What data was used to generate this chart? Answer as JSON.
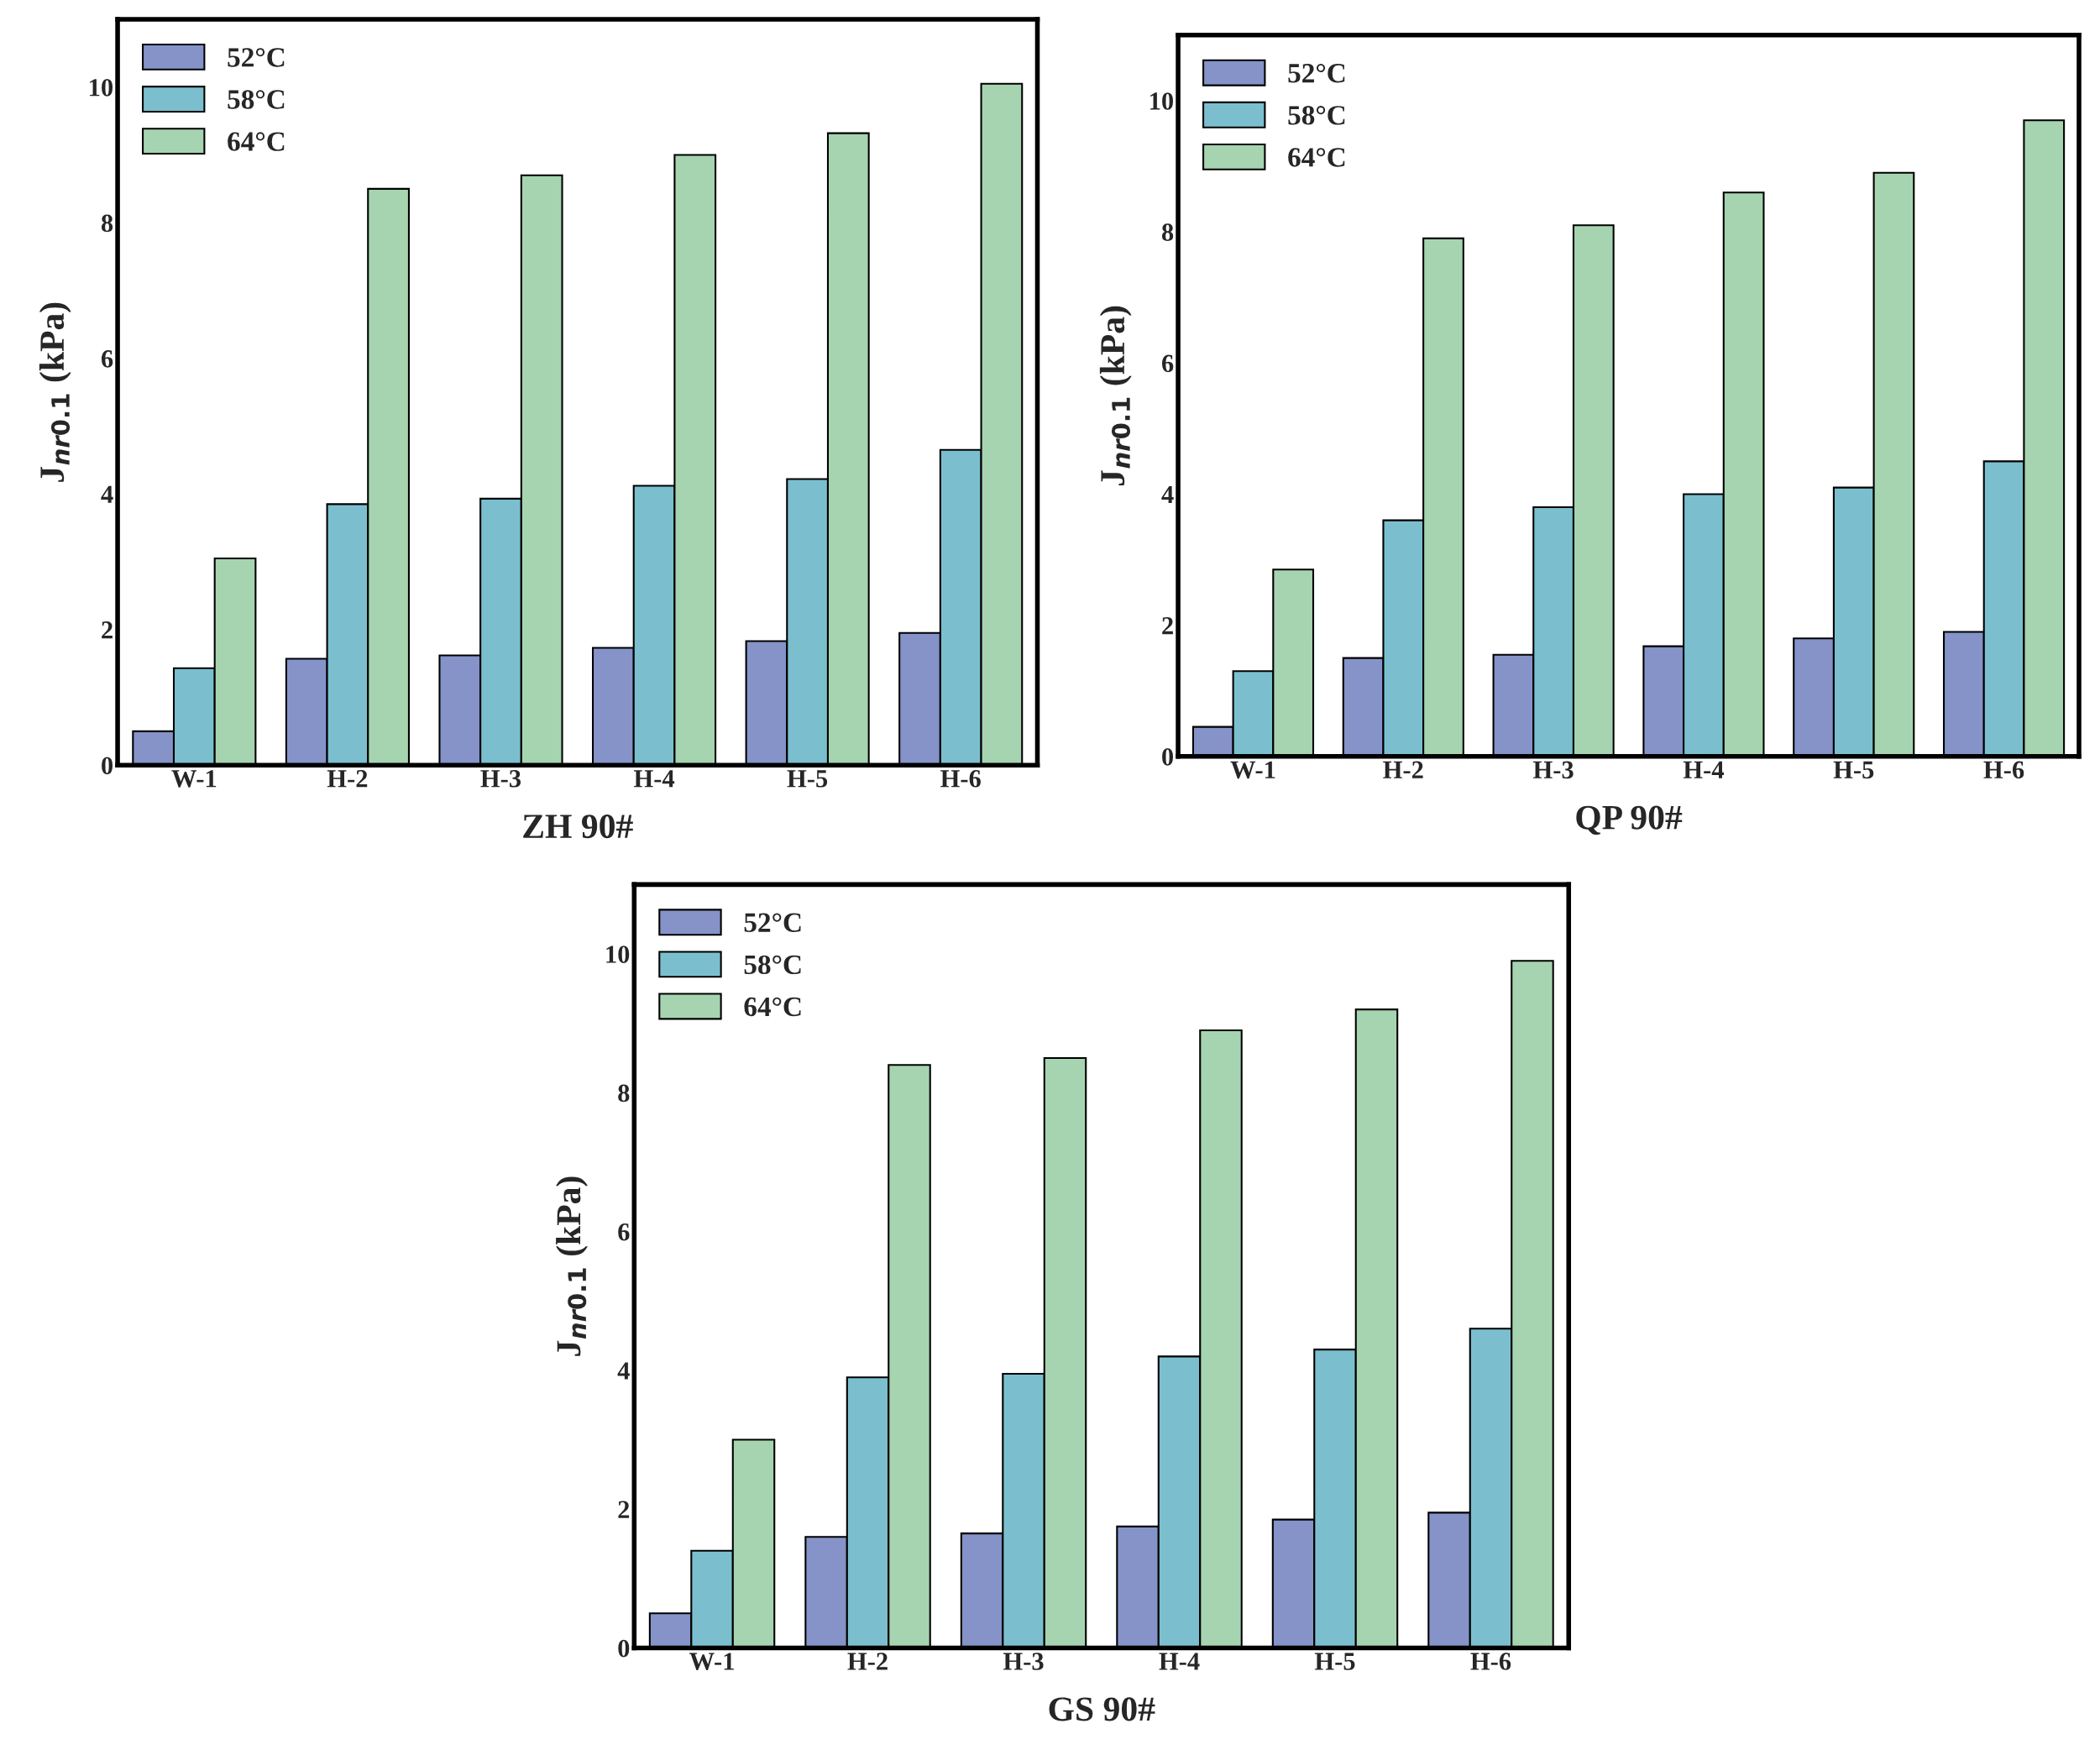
{
  "chart_data": [
    {
      "type": "bar",
      "xlabel": "ZH 90#",
      "ylabel": "J$_{nr0.1}$ (kPa)",
      "categories": [
        "W-1",
        "H-2",
        "H-3",
        "H-4",
        "H-5",
        "H-6"
      ],
      "ylim": [
        0,
        11
      ],
      "yticks": [
        0,
        2,
        4,
        6,
        8,
        10
      ],
      "grid": false,
      "legend": "top left",
      "series": [
        {
          "name": "52°C",
          "color": "#8593c8",
          "values": [
            0.5,
            1.57,
            1.62,
            1.73,
            1.83,
            1.95
          ]
        },
        {
          "name": "58°C",
          "color": "#7bbfcf",
          "values": [
            1.43,
            3.85,
            3.93,
            4.12,
            4.22,
            4.65
          ]
        },
        {
          "name": "64°C",
          "color": "#a6d4b0",
          "values": [
            3.05,
            8.5,
            8.7,
            9.0,
            9.32,
            10.05
          ]
        }
      ]
    },
    {
      "type": "bar",
      "xlabel": "QP 90#",
      "ylabel": "J$_{nr0.1}$ (kPa)",
      "categories": [
        "W-1",
        "H-2",
        "H-3",
        "H-4",
        "H-5",
        "H-6"
      ],
      "ylim": [
        0,
        11
      ],
      "yticks": [
        0,
        2,
        4,
        6,
        8,
        10
      ],
      "grid": false,
      "legend": "top left",
      "series": [
        {
          "name": "52°C",
          "color": "#8593c8",
          "values": [
            0.45,
            1.5,
            1.55,
            1.68,
            1.8,
            1.9
          ]
        },
        {
          "name": "58°C",
          "color": "#7bbfcf",
          "values": [
            1.3,
            3.6,
            3.8,
            4.0,
            4.1,
            4.5
          ]
        },
        {
          "name": "64°C",
          "color": "#a6d4b0",
          "values": [
            2.85,
            7.9,
            8.1,
            8.6,
            8.9,
            9.7
          ]
        }
      ]
    },
    {
      "type": "bar",
      "xlabel": "GS 90#",
      "ylabel": "J$_{nr0.1}$ (kPa)",
      "categories": [
        "W-1",
        "H-2",
        "H-3",
        "H-4",
        "H-5",
        "H-6"
      ],
      "ylim": [
        0,
        11
      ],
      "yticks": [
        0,
        2,
        4,
        6,
        8,
        10
      ],
      "grid": false,
      "legend": "top left",
      "series": [
        {
          "name": "52°C",
          "color": "#8593c8",
          "values": [
            0.5,
            1.6,
            1.65,
            1.75,
            1.85,
            1.95
          ]
        },
        {
          "name": "58°C",
          "color": "#7bbfcf",
          "values": [
            1.4,
            3.9,
            3.95,
            4.2,
            4.3,
            4.6
          ]
        },
        {
          "name": "64°C",
          "color": "#a6d4b0",
          "values": [
            3.0,
            8.4,
            8.5,
            8.9,
            9.2,
            9.9
          ]
        }
      ]
    }
  ]
}
